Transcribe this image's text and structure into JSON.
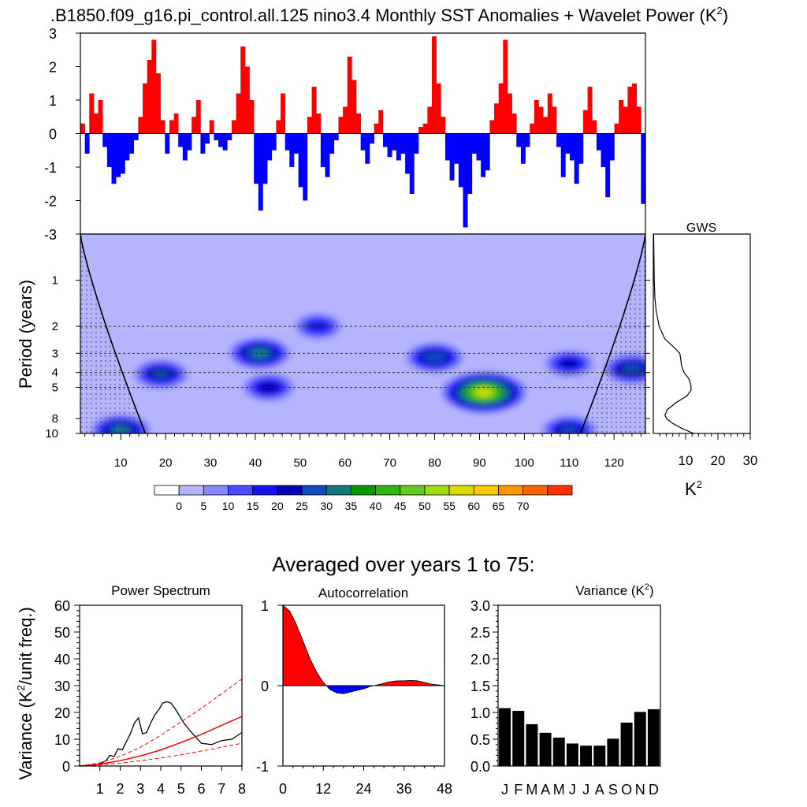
{
  "figure": {
    "title_main": ".B1850.f09_g16.pi_control.all.125 nino3.4 Monthly SST Anomalies + Wavelet Power (K",
    "title_sup": "2",
    "title_close": ")",
    "avg_title": "Averaged over years 1 to 75:"
  },
  "colors": {
    "pos": "#ff0000",
    "neg": "#0000ff",
    "wavelet_palette": [
      "#ffffff",
      "#b4b4ff",
      "#8787ff",
      "#4b4bff",
      "#1414f0",
      "#0000b4",
      "#0f4bbe",
      "#14787d",
      "#0a9600",
      "#30b414",
      "#64c81e",
      "#a0dc14",
      "#dcdc00",
      "#ffc800",
      "#ff9600",
      "#ff6400",
      "#ff3200",
      "#ff0000"
    ]
  },
  "chart_data": [
    {
      "id": "sst",
      "type": "bar",
      "title": "",
      "xlim": [
        1,
        127
      ],
      "ylim": [
        -3,
        3
      ],
      "yticks": [
        "3",
        "2",
        "1",
        "0",
        "-1",
        "-2",
        "-3"
      ],
      "ytick_values": [
        3,
        2,
        1,
        0,
        -1,
        -2,
        -3
      ],
      "note": "monthly anomalies, positive red, negative blue",
      "x": [
        1,
        2,
        3,
        4,
        5,
        6,
        7,
        8,
        9,
        10,
        11,
        12,
        13,
        14,
        15,
        16,
        17,
        18,
        19,
        20,
        21,
        22,
        23,
        24,
        25,
        26,
        27,
        28,
        29,
        30,
        31,
        32,
        33,
        34,
        35,
        36,
        37,
        38,
        39,
        40,
        41,
        42,
        43,
        44,
        45,
        46,
        47,
        48,
        49,
        50,
        51,
        52,
        53,
        54,
        55,
        56,
        57,
        58,
        59,
        60,
        61,
        62,
        63,
        64,
        65,
        66,
        67,
        68,
        69,
        70,
        71,
        72,
        73,
        74,
        75,
        76,
        77,
        78,
        79,
        80,
        81,
        82,
        83,
        84,
        85,
        86,
        87,
        88,
        89,
        90,
        91,
        92,
        93,
        94,
        95,
        96,
        97,
        98,
        99,
        100,
        101,
        102,
        103,
        104,
        105,
        106,
        107,
        108,
        109,
        110,
        111,
        112,
        113,
        114,
        115,
        116,
        117,
        118,
        119,
        120,
        121,
        122,
        123,
        124,
        125,
        126,
        127
      ],
      "values": [
        0.3,
        -0.6,
        1.2,
        0.6,
        1.0,
        -0.4,
        -1.0,
        -1.5,
        -1.3,
        -1.2,
        -0.8,
        -0.6,
        -0.2,
        0.5,
        1.5,
        2.2,
        2.8,
        1.8,
        0.4,
        -0.6,
        0.4,
        0.6,
        -0.4,
        -0.8,
        -0.5,
        0.5,
        1.0,
        -0.6,
        -0.3,
        0.4,
        -0.2,
        -0.4,
        -0.5,
        -0.2,
        0.4,
        1.2,
        2.6,
        2.0,
        1.0,
        -1.5,
        -2.3,
        -1.5,
        -0.8,
        -0.5,
        0.4,
        1.2,
        -0.5,
        -1.0,
        -0.6,
        -1.6,
        -2.0,
        0.5,
        1.4,
        0.6,
        -1.0,
        -1.3,
        -0.6,
        -0.2,
        0.5,
        0.8,
        2.3,
        1.6,
        0.6,
        -0.5,
        -0.9,
        -0.3,
        0.3,
        0.7,
        -0.4,
        -0.7,
        -0.5,
        -0.8,
        -0.6,
        -1.2,
        -1.8,
        -0.6,
        0.2,
        0.3,
        0.8,
        2.9,
        1.5,
        0.5,
        -0.8,
        -1.4,
        -0.9,
        -1.6,
        -2.8,
        -1.8,
        -0.6,
        -0.8,
        -1.3,
        -1.1,
        0.4,
        0.9,
        1.5,
        2.8,
        1.2,
        0.6,
        -0.4,
        -0.9,
        -0.4,
        0.3,
        1.0,
        0.8,
        0.5,
        1.2,
        0.8,
        -0.4,
        -1.3,
        -0.6,
        -0.8,
        -1.5,
        -0.9,
        0.7,
        1.4,
        0.4,
        -0.5,
        -1.0,
        -1.9,
        -0.8,
        0.3,
        1.0,
        0.8,
        1.4,
        1.5,
        0.8,
        -2.1
      ]
    },
    {
      "id": "wavelet",
      "type": "heatmap",
      "title": "",
      "ylabel": "Period (years)",
      "xlim": [
        1,
        127
      ],
      "xticks": [
        "10",
        "20",
        "30",
        "40",
        "50",
        "60",
        "70",
        "80",
        "90",
        "100",
        "110",
        "120"
      ],
      "xtick_values": [
        10,
        20,
        30,
        40,
        50,
        60,
        70,
        80,
        90,
        100,
        110,
        120
      ],
      "yticks": [
        "1",
        "2",
        "3",
        "4",
        "5",
        "8",
        "10"
      ],
      "ytick_values": [
        1,
        2,
        3,
        4,
        5,
        8,
        10
      ],
      "ylim_log": [
        0.5,
        10
      ],
      "levels": [
        "0",
        "5",
        "10",
        "15",
        "20",
        "25",
        "30",
        "35",
        "40",
        "45",
        "50",
        "55",
        "60",
        "65",
        "70"
      ],
      "level_values": [
        0,
        5,
        10,
        15,
        20,
        25,
        30,
        35,
        40,
        45,
        50,
        55,
        60,
        65,
        70
      ],
      "hotspots": [
        {
          "x": 19,
          "period": 4.1,
          "power": 25
        },
        {
          "x": 41,
          "period": 3.0,
          "power": 32
        },
        {
          "x": 43,
          "period": 5.0,
          "power": 22
        },
        {
          "x": 54,
          "period": 2.0,
          "power": 18
        },
        {
          "x": 80,
          "period": 3.2,
          "power": 28
        },
        {
          "x": 91,
          "period": 5.4,
          "power": 55
        },
        {
          "x": 110,
          "period": 3.5,
          "power": 20
        },
        {
          "x": 124,
          "period": 3.8,
          "power": 27
        },
        {
          "x": 10,
          "period": 9.5,
          "power": 30
        },
        {
          "x": 110,
          "period": 9.5,
          "power": 25
        }
      ],
      "dashed_periods": [
        2,
        3,
        4,
        5
      ]
    },
    {
      "id": "gws",
      "type": "line",
      "title": "GWS",
      "xlabel": "K",
      "xlabel_sup": "2",
      "xlim": [
        0,
        30
      ],
      "xticks": [
        "10",
        "20",
        "30"
      ],
      "xtick_values": [
        10,
        20,
        30
      ],
      "period": [
        0.5,
        0.7,
        1.0,
        1.3,
        1.6,
        2.0,
        2.4,
        2.8,
        3.0,
        3.3,
        3.6,
        4.0,
        4.4,
        4.8,
        5.2,
        5.7,
        6.3,
        7.0,
        7.6,
        8.0,
        8.6,
        9.3,
        10.0
      ],
      "power": [
        0.1,
        0.2,
        0.3,
        0.5,
        0.9,
        1.8,
        3.5,
        6.8,
        8.2,
        8.5,
        8.7,
        9.5,
        11.0,
        11.6,
        11.7,
        10.4,
        7.0,
        4.3,
        3.6,
        4.1,
        6.0,
        9.0,
        12.5
      ]
    },
    {
      "id": "power_spectrum",
      "type": "line",
      "title": "Power Spectrum",
      "ylabel": "Variance (K",
      "ylabel_sup": "2",
      "ylabel_tail": "/unit freq.)",
      "xlim": [
        0,
        8
      ],
      "ylim": [
        0,
        60
      ],
      "xticks": [
        "1",
        "2",
        "3",
        "4",
        "5",
        "6",
        "7",
        "8"
      ],
      "xtick_values": [
        1,
        2,
        3,
        4,
        5,
        6,
        7,
        8
      ],
      "yticks": [
        "0",
        "10",
        "20",
        "30",
        "40",
        "50",
        "60"
      ],
      "ytick_values": [
        0,
        10,
        20,
        30,
        40,
        50,
        60
      ],
      "series": [
        {
          "x": [
            0,
            0.5,
            1,
            1.3,
            1.5,
            1.7,
            1.9,
            2.1,
            2.3,
            2.5,
            2.7,
            2.9,
            3.1,
            3.3,
            3.5,
            3.7,
            3.9,
            4.1,
            4.3,
            4.5,
            4.7,
            4.9,
            5.1,
            5.4,
            5.7,
            6.0,
            6.5,
            7.0,
            7.5,
            8.0
          ],
          "values": [
            0,
            0.3,
            0.8,
            2.0,
            4.0,
            3.5,
            6.5,
            6.0,
            9.0,
            12.0,
            16.0,
            18.0,
            12.0,
            12.5,
            16.0,
            19.0,
            21.0,
            23.5,
            24.0,
            23.5,
            21.5,
            19.0,
            16.5,
            13.5,
            11.0,
            8.5,
            8.0,
            9.5,
            10.0,
            12.5
          ]
        },
        {
          "x": [
            0,
            1,
            2,
            3,
            4,
            5,
            6,
            7,
            8
          ],
          "values": [
            0,
            0.7,
            2.0,
            3.8,
            6.0,
            8.8,
            11.8,
            15.2,
            18.5
          ]
        },
        {
          "x": [
            0,
            1,
            2,
            3,
            4,
            5,
            6,
            7,
            8
          ],
          "values": [
            0,
            1.2,
            3.6,
            7.0,
            11.5,
            16.5,
            21.5,
            27.0,
            32.5
          ]
        },
        {
          "x": [
            0,
            1,
            2,
            3,
            4,
            5,
            6,
            7,
            8
          ],
          "values": [
            0,
            0.4,
            1.1,
            2.0,
            3.0,
            4.2,
            5.6,
            7.0,
            8.5
          ]
        }
      ]
    },
    {
      "id": "autocorrelation",
      "type": "area",
      "title": "Autocorrelation",
      "xlim": [
        0,
        48
      ],
      "ylim": [
        -1,
        1
      ],
      "xticks": [
        "0",
        "12",
        "24",
        "36",
        "48"
      ],
      "xtick_values": [
        0,
        12,
        24,
        36,
        48
      ],
      "yticks": [
        "1",
        "0",
        "-1"
      ],
      "ytick_values": [
        1,
        0,
        -1
      ],
      "x": [
        0,
        2,
        4,
        6,
        8,
        10,
        12,
        14,
        16,
        18,
        20,
        22,
        24,
        26,
        28,
        30,
        32,
        34,
        36,
        38,
        40,
        42,
        44,
        46,
        48
      ],
      "values": [
        1.0,
        0.93,
        0.76,
        0.55,
        0.34,
        0.17,
        0.04,
        -0.05,
        -0.09,
        -0.1,
        -0.08,
        -0.06,
        -0.04,
        -0.01,
        0.01,
        0.03,
        0.05,
        0.06,
        0.06,
        0.065,
        0.06,
        0.04,
        0.02,
        0.01,
        0.0
      ]
    },
    {
      "id": "variance",
      "type": "bar",
      "title": "Variance (K",
      "title_sup": "2",
      "title_close": ")",
      "ylim": [
        0,
        3
      ],
      "yticks": [
        "3.0",
        "2.5",
        "2.0",
        "1.5",
        "1.0",
        "0.5",
        "0.0"
      ],
      "ytick_values": [
        3.0,
        2.5,
        2.0,
        1.5,
        1.0,
        0.5,
        0.0
      ],
      "categories": [
        "J",
        "F",
        "M",
        "A",
        "M",
        "J",
        "J",
        "A",
        "S",
        "O",
        "N",
        "D"
      ],
      "values": [
        1.08,
        1.03,
        0.78,
        0.62,
        0.53,
        0.42,
        0.38,
        0.38,
        0.51,
        0.81,
        1.01,
        1.06
      ]
    }
  ]
}
